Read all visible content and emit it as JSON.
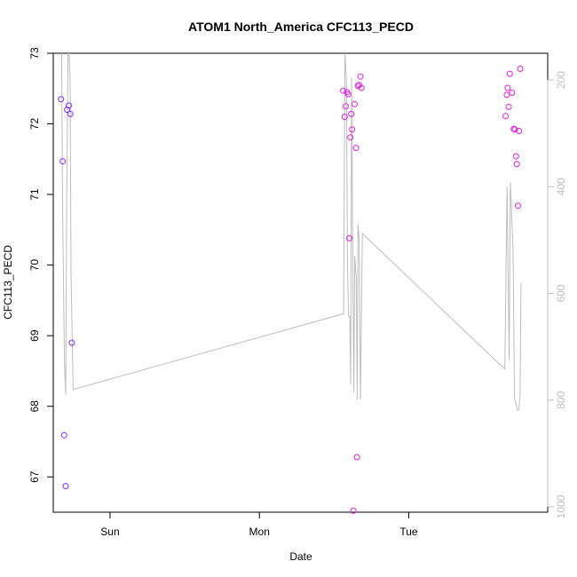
{
  "chart_data": {
    "type": "scatter",
    "title": "ATOM1 North_America CFC113_PECD",
    "xlabel": "Date",
    "ylabel": "CFC113_PECD",
    "x_ticks": [
      {
        "label": "Sun",
        "day": 1.0
      },
      {
        "label": "Mon",
        "day": 2.0
      },
      {
        "label": "Tue",
        "day": 3.0
      }
    ],
    "xlim": [
      0.62,
      3.93
    ],
    "ylim": [
      66.5,
      73.0
    ],
    "y_ticks": [
      67,
      68,
      69,
      70,
      71,
      72,
      73
    ],
    "y2_ticks": [
      200,
      400,
      600,
      800,
      1000
    ],
    "y2lim": [
      1010,
      150
    ],
    "y2_color": "#bdbdbd",
    "grid": false,
    "series": [
      {
        "kind": "points",
        "color": "#7b2ff7",
        "points": [
          {
            "day": 0.672,
            "value": 72.35
          },
          {
            "day": 0.683,
            "value": 71.47
          },
          {
            "day": 0.693,
            "value": 67.59
          },
          {
            "day": 0.703,
            "value": 66.87
          },
          {
            "day": 0.713,
            "value": 72.2
          },
          {
            "day": 0.724,
            "value": 72.26
          },
          {
            "day": 0.734,
            "value": 72.14
          },
          {
            "day": 0.744,
            "value": 68.9
          }
        ]
      },
      {
        "kind": "points",
        "color": "#e31ee3",
        "points": [
          {
            "day": 2.561,
            "value": 72.47
          },
          {
            "day": 2.571,
            "value": 72.1
          },
          {
            "day": 2.578,
            "value": 72.25
          },
          {
            "day": 2.586,
            "value": 72.45
          },
          {
            "day": 2.594,
            "value": 72.42
          },
          {
            "day": 2.602,
            "value": 70.38
          },
          {
            "day": 2.609,
            "value": 71.81
          },
          {
            "day": 2.615,
            "value": 72.14
          },
          {
            "day": 2.621,
            "value": 71.92
          },
          {
            "day": 2.629,
            "value": 66.52
          },
          {
            "day": 2.637,
            "value": 72.28
          },
          {
            "day": 2.647,
            "value": 71.66
          },
          {
            "day": 2.653,
            "value": 67.28
          },
          {
            "day": 2.659,
            "value": 72.54
          },
          {
            "day": 2.668,
            "value": 72.55
          },
          {
            "day": 2.676,
            "value": 72.67
          },
          {
            "day": 2.683,
            "value": 72.51
          },
          {
            "day": 3.648,
            "value": 72.11
          },
          {
            "day": 3.656,
            "value": 72.41
          },
          {
            "day": 3.662,
            "value": 72.51
          },
          {
            "day": 3.669,
            "value": 72.24
          },
          {
            "day": 3.676,
            "value": 72.71
          },
          {
            "day": 3.691,
            "value": 72.44
          },
          {
            "day": 3.703,
            "value": 71.93
          },
          {
            "day": 3.71,
            "value": 71.92
          },
          {
            "day": 3.718,
            "value": 71.54
          },
          {
            "day": 3.723,
            "value": 71.43
          },
          {
            "day": 3.731,
            "value": 70.84
          },
          {
            "day": 3.738,
            "value": 71.9
          },
          {
            "day": 3.746,
            "value": 72.78
          }
        ]
      },
      {
        "kind": "line",
        "axis": "right",
        "color": "#bdbdbd",
        "points": [
          {
            "day": 0.676,
            "value": 150
          },
          {
            "day": 0.683,
            "value": 450
          },
          {
            "day": 0.695,
            "value": 730
          },
          {
            "day": 0.703,
            "value": 790
          },
          {
            "day": 0.71,
            "value": 430
          },
          {
            "day": 0.719,
            "value": 150
          },
          {
            "day": 0.726,
            "value": 150
          },
          {
            "day": 0.733,
            "value": 200
          },
          {
            "day": 0.739,
            "value": 560
          },
          {
            "day": 0.753,
            "value": 780
          },
          {
            "day": 2.564,
            "value": 638
          },
          {
            "day": 2.573,
            "value": 150
          },
          {
            "day": 2.583,
            "value": 200
          },
          {
            "day": 2.59,
            "value": 550
          },
          {
            "day": 2.597,
            "value": 643
          },
          {
            "day": 2.605,
            "value": 643
          },
          {
            "day": 2.611,
            "value": 770
          },
          {
            "day": 2.617,
            "value": 195
          },
          {
            "day": 2.624,
            "value": 480
          },
          {
            "day": 2.632,
            "value": 785
          },
          {
            "day": 2.638,
            "value": 530
          },
          {
            "day": 2.648,
            "value": 570
          },
          {
            "day": 2.655,
            "value": 799
          },
          {
            "day": 2.66,
            "value": 470
          },
          {
            "day": 2.668,
            "value": 499
          },
          {
            "day": 2.677,
            "value": 799
          },
          {
            "day": 2.689,
            "value": 488
          },
          {
            "day": 3.643,
            "value": 742
          },
          {
            "day": 3.658,
            "value": 400
          },
          {
            "day": 3.672,
            "value": 725
          },
          {
            "day": 3.68,
            "value": 392
          },
          {
            "day": 3.698,
            "value": 520
          },
          {
            "day": 3.708,
            "value": 795
          },
          {
            "day": 3.726,
            "value": 818
          },
          {
            "day": 3.737,
            "value": 818
          },
          {
            "day": 3.745,
            "value": 790
          },
          {
            "day": 3.751,
            "value": 580
          }
        ]
      }
    ]
  }
}
